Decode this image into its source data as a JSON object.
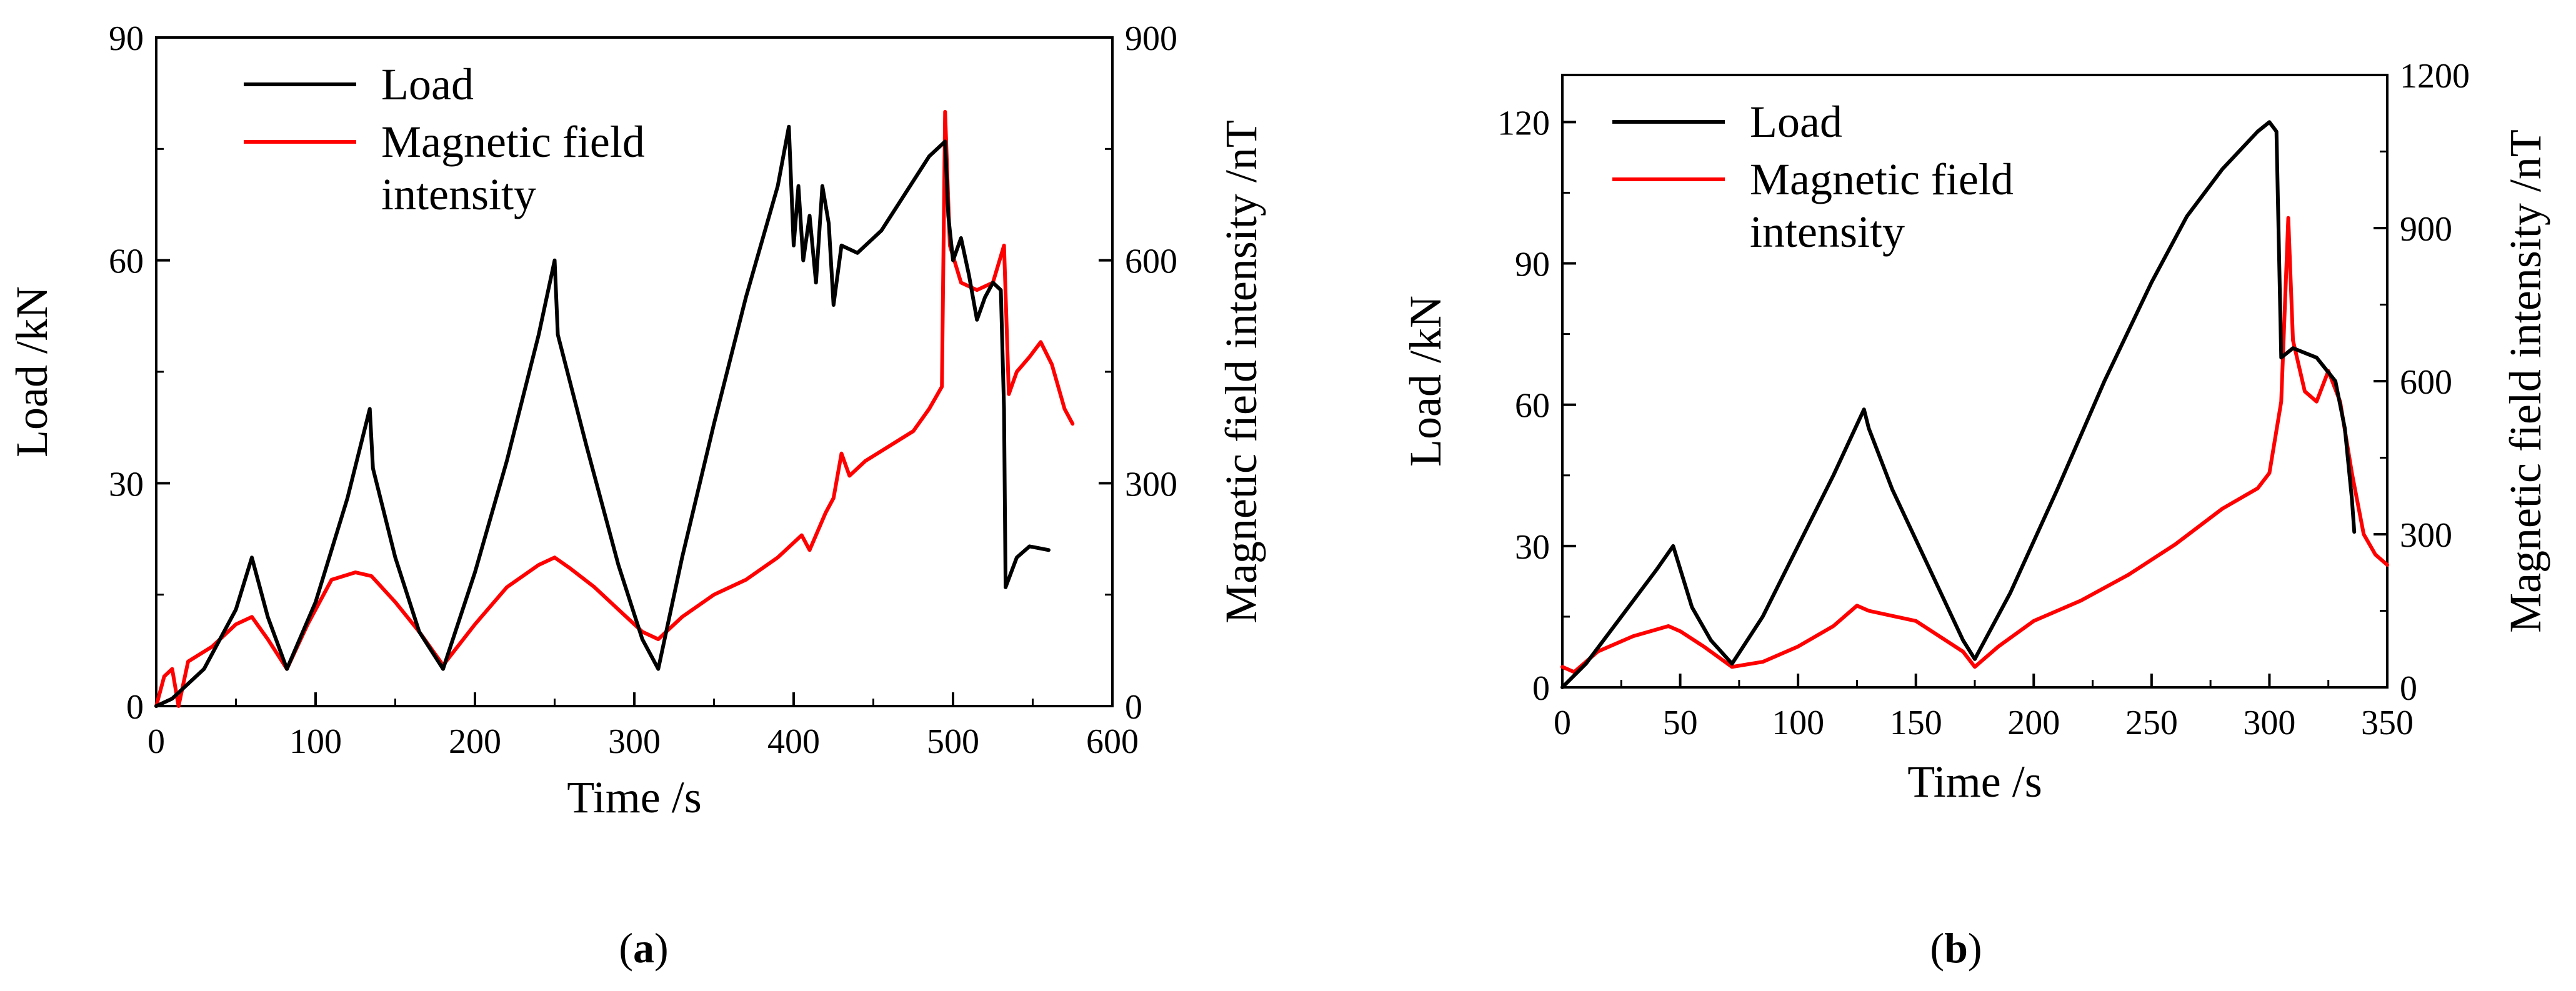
{
  "figure": {
    "captions": {
      "a": "(a)",
      "b": "(b)"
    },
    "caption_parts": {
      "a": {
        "open": "(",
        "letter": "a",
        "close": ")"
      },
      "b": {
        "open": "(",
        "letter": "b",
        "close": ")"
      }
    },
    "legend": {
      "load": "Load",
      "magnetic_line1": "Magnetic field",
      "magnetic_line2": "intensity"
    }
  },
  "chart_data": [
    {
      "panel": "a",
      "type": "line",
      "title": "",
      "xlabel": "Time /s",
      "ylabel": "Load /kN",
      "y2label": "Magnetic field intensity /nT",
      "xlim": [
        0,
        600
      ],
      "ylim": [
        0,
        90
      ],
      "y2lim": [
        0,
        900
      ],
      "xticks": [
        0,
        100,
        200,
        300,
        400,
        500,
        600
      ],
      "yticks": [
        0,
        30,
        60,
        90
      ],
      "y2ticks": [
        0,
        300,
        600,
        900
      ],
      "legend_position": "top-left",
      "series": [
        {
          "name": "Load",
          "axis": "left",
          "color": "#000000",
          "points": [
            [
              0,
              0
            ],
            [
              10,
              1
            ],
            [
              30,
              5
            ],
            [
              50,
              13
            ],
            [
              60,
              20
            ],
            [
              70,
              12
            ],
            [
              82,
              5
            ],
            [
              100,
              14
            ],
            [
              120,
              28
            ],
            [
              134,
              40
            ],
            [
              136,
              32
            ],
            [
              150,
              20
            ],
            [
              165,
              10
            ],
            [
              180,
              5
            ],
            [
              200,
              18
            ],
            [
              220,
              33
            ],
            [
              240,
              50
            ],
            [
              250,
              60
            ],
            [
              252,
              50
            ],
            [
              270,
              35
            ],
            [
              290,
              19
            ],
            [
              305,
              9
            ],
            [
              315,
              5
            ],
            [
              330,
              20
            ],
            [
              350,
              38
            ],
            [
              370,
              55
            ],
            [
              390,
              70
            ],
            [
              397,
              78
            ],
            [
              400,
              62
            ],
            [
              403,
              70
            ],
            [
              406,
              60
            ],
            [
              410,
              66
            ],
            [
              414,
              57
            ],
            [
              418,
              70
            ],
            [
              422,
              65
            ],
            [
              425,
              54
            ],
            [
              430,
              62
            ],
            [
              440,
              61
            ],
            [
              455,
              64
            ],
            [
              470,
              69
            ],
            [
              485,
              74
            ],
            [
              495,
              76
            ],
            [
              497,
              66
            ],
            [
              500,
              60
            ],
            [
              505,
              63
            ],
            [
              510,
              58
            ],
            [
              515,
              52
            ],
            [
              520,
              55
            ],
            [
              525,
              57
            ],
            [
              530,
              56
            ],
            [
              532,
              40
            ],
            [
              533,
              16
            ],
            [
              540,
              20
            ],
            [
              548,
              21.5
            ],
            [
              560,
              21
            ]
          ]
        },
        {
          "name": "Magnetic field intensity",
          "axis": "right",
          "color": "#ff0000",
          "points": [
            [
              0,
              0
            ],
            [
              5,
              40
            ],
            [
              10,
              50
            ],
            [
              14,
              0
            ],
            [
              20,
              60
            ],
            [
              35,
              80
            ],
            [
              50,
              110
            ],
            [
              60,
              120
            ],
            [
              70,
              90
            ],
            [
              82,
              50
            ],
            [
              95,
              110
            ],
            [
              110,
              170
            ],
            [
              125,
              180
            ],
            [
              135,
              175
            ],
            [
              150,
              140
            ],
            [
              165,
              100
            ],
            [
              180,
              55
            ],
            [
              200,
              110
            ],
            [
              220,
              160
            ],
            [
              240,
              190
            ],
            [
              250,
              200
            ],
            [
              260,
              185
            ],
            [
              275,
              160
            ],
            [
              290,
              130
            ],
            [
              305,
              100
            ],
            [
              315,
              90
            ],
            [
              330,
              120
            ],
            [
              350,
              150
            ],
            [
              370,
              170
            ],
            [
              390,
              200
            ],
            [
              405,
              230
            ],
            [
              410,
              210
            ],
            [
              420,
              260
            ],
            [
              425,
              280
            ],
            [
              430,
              340
            ],
            [
              435,
              310
            ],
            [
              445,
              330
            ],
            [
              460,
              350
            ],
            [
              475,
              370
            ],
            [
              485,
              400
            ],
            [
              493,
              430
            ],
            [
              495,
              800
            ],
            [
              498,
              620
            ],
            [
              505,
              570
            ],
            [
              515,
              560
            ],
            [
              525,
              570
            ],
            [
              532,
              620
            ],
            [
              535,
              420
            ],
            [
              540,
              450
            ],
            [
              548,
              470
            ],
            [
              555,
              490
            ],
            [
              562,
              460
            ],
            [
              570,
              400
            ],
            [
              575,
              380
            ]
          ]
        }
      ]
    },
    {
      "panel": "b",
      "type": "line",
      "title": "",
      "xlabel": "Time /s",
      "ylabel": "Load /kN",
      "y2label": "Magnetic field intensity /nT",
      "xlim": [
        0,
        350
      ],
      "ylim": [
        0,
        130
      ],
      "y2lim": [
        0,
        1200
      ],
      "xticks": [
        0,
        50,
        100,
        150,
        200,
        250,
        300,
        350
      ],
      "yticks": [
        0,
        30,
        60,
        90,
        120
      ],
      "y2ticks": [
        0,
        300,
        600,
        900,
        1200
      ],
      "legend_position": "top-left",
      "series": [
        {
          "name": "Load",
          "axis": "left",
          "color": "#000000",
          "points": [
            [
              0,
              0
            ],
            [
              10,
              5
            ],
            [
              25,
              15
            ],
            [
              40,
              25
            ],
            [
              47,
              30
            ],
            [
              55,
              17
            ],
            [
              63,
              10
            ],
            [
              72,
              5
            ],
            [
              85,
              15
            ],
            [
              100,
              30
            ],
            [
              115,
              45
            ],
            [
              128,
              59
            ],
            [
              130,
              55
            ],
            [
              140,
              42
            ],
            [
              155,
              26
            ],
            [
              170,
              10
            ],
            [
              175,
              6
            ],
            [
              190,
              20
            ],
            [
              210,
              42
            ],
            [
              230,
              65
            ],
            [
              250,
              86
            ],
            [
              265,
              100
            ],
            [
              280,
              110
            ],
            [
              295,
              118
            ],
            [
              300,
              120
            ],
            [
              303,
              118
            ],
            [
              305,
              70
            ],
            [
              310,
              72
            ],
            [
              320,
              70
            ],
            [
              328,
              65
            ],
            [
              332,
              55
            ],
            [
              335,
              40
            ],
            [
              336,
              33
            ]
          ]
        },
        {
          "name": "Magnetic field intensity",
          "axis": "right",
          "color": "#ff0000",
          "points": [
            [
              0,
              40
            ],
            [
              5,
              30
            ],
            [
              15,
              70
            ],
            [
              30,
              100
            ],
            [
              45,
              120
            ],
            [
              50,
              110
            ],
            [
              60,
              80
            ],
            [
              72,
              40
            ],
            [
              85,
              50
            ],
            [
              100,
              80
            ],
            [
              115,
              120
            ],
            [
              125,
              160
            ],
            [
              130,
              150
            ],
            [
              140,
              140
            ],
            [
              150,
              130
            ],
            [
              160,
              100
            ],
            [
              170,
              70
            ],
            [
              175,
              40
            ],
            [
              185,
              80
            ],
            [
              200,
              130
            ],
            [
              220,
              170
            ],
            [
              240,
              220
            ],
            [
              260,
              280
            ],
            [
              280,
              350
            ],
            [
              295,
              390
            ],
            [
              300,
              420
            ],
            [
              305,
              560
            ],
            [
              308,
              920
            ],
            [
              310,
              680
            ],
            [
              315,
              580
            ],
            [
              320,
              560
            ],
            [
              325,
              620
            ],
            [
              330,
              560
            ],
            [
              335,
              420
            ],
            [
              340,
              300
            ],
            [
              345,
              260
            ],
            [
              350,
              240
            ]
          ]
        }
      ]
    }
  ]
}
